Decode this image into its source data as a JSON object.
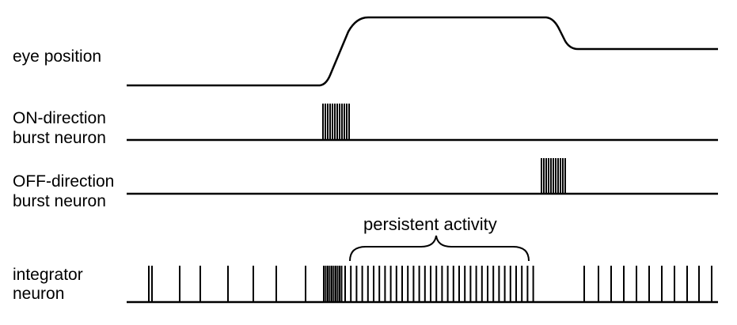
{
  "labels": {
    "eye_position": "eye position",
    "on_burst_line1": "ON-direction",
    "on_burst_line2": "burst neuron",
    "off_burst_line1": "OFF-direction",
    "off_burst_line2": "burst neuron",
    "integrator_line1": "integrator",
    "integrator_line2": "neuron",
    "persistent_activity": "persistent activity"
  },
  "colors": {
    "trace": "#000000",
    "background": "#ffffff"
  }
}
